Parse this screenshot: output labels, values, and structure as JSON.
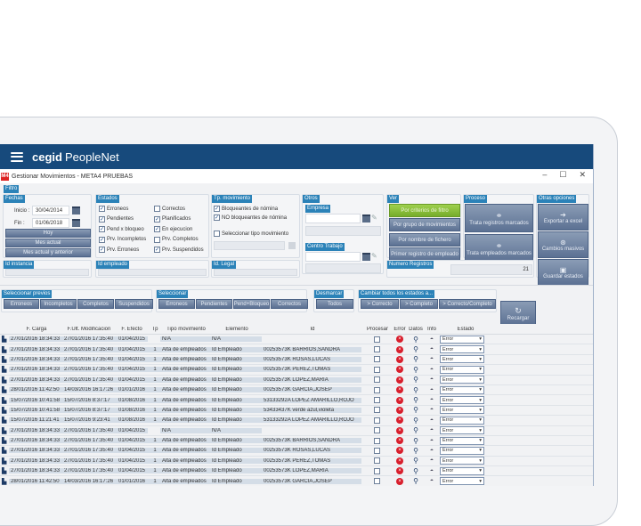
{
  "app": {
    "brand_bold": "cegid",
    "brand_name": "PeopleNet",
    "window_title": "Gestionar Movimientos - META4 PRUEBAS",
    "app_icon": "M4",
    "window_controls": {
      "minimize": "–",
      "maximize": "☐",
      "close": "✕"
    }
  },
  "filter": {
    "legend": "Filtro",
    "fechas": {
      "legend": "Fechas",
      "inicio_label": "Inicio :",
      "inicio_value": "30/04/2014",
      "fin_label": "Fin :",
      "fin_value": "01/06/2018",
      "buttons": [
        "Hoy",
        "Mes actual",
        "Mes actual y anterior"
      ]
    },
    "estados": {
      "legend": "Estados",
      "items": [
        {
          "label": "Erroneos",
          "checked": true
        },
        {
          "label": "Correctos",
          "checked": false
        },
        {
          "label": "Pendientes",
          "checked": true
        },
        {
          "label": "Planificados",
          "checked": true
        },
        {
          "label": "Pend x bloqueo",
          "checked": true
        },
        {
          "label": "En ejecucion",
          "checked": true
        },
        {
          "label": "Prv. Incompletos",
          "checked": true
        },
        {
          "label": "Prv. Completos",
          "checked": false
        },
        {
          "label": "Prv. Erroneos",
          "checked": true
        },
        {
          "label": "Prv. Suspendidos",
          "checked": true
        }
      ]
    },
    "tp_movimiento": {
      "legend": "Tp. movimiento",
      "items": [
        {
          "label": "Bloqueantes de nómina",
          "checked": true
        },
        {
          "label": "NO bloqueantes de nómina",
          "checked": true
        },
        {
          "label": "Seleccionar tipo movimiento",
          "checked": false
        }
      ]
    },
    "otros": {
      "legend": "Otros",
      "empresa_legend": "Empresa",
      "centro_legend": "Centro Trabajo"
    },
    "id_instancia_legend": "Id instancia",
    "id_empleado_legend": "Id empleado",
    "id_legal_legend": "Id. Legal"
  },
  "ver": {
    "legend": "Ver",
    "buttons": [
      "Por criterios de filtro",
      "Por grupo de movimientos",
      "Por nombre de fichero",
      "Primer registro de empleado"
    ]
  },
  "proceso": {
    "legend": "Proceso",
    "buttons": [
      "Trata registros marcados",
      "Trata empleados marcados"
    ]
  },
  "otras_opciones": {
    "legend": "Otras opciones",
    "buttons": [
      "Exportar a excel",
      "Cambios masivos",
      "Guardar estados"
    ]
  },
  "numero_registros": {
    "legend": "Numero Registros",
    "value": "21"
  },
  "toolbar": {
    "seleccionar_previos": {
      "legend": "Seleccionar previos",
      "buttons": [
        "Erroneos",
        "Incompletos",
        "Completos",
        "Suspendidos"
      ]
    },
    "seleccionar": {
      "legend": "Seleccionar",
      "buttons": [
        "Erroneos",
        "Pendientes",
        "Pend+Bloqueo",
        "Correctos"
      ]
    },
    "desmarcar": {
      "legend": "Desmarcar",
      "buttons": [
        "Todos"
      ]
    },
    "cambiar": {
      "legend": "Cambiar todos los estados a...",
      "buttons": [
        "> Correcto",
        "> Completo",
        "> Correcto/Completo"
      ]
    },
    "recargar": "Recargar"
  },
  "table": {
    "columns": [
      "",
      "F. Carga",
      "F.Ult. Modificacion",
      "F. Efecto",
      "Tp",
      "Tipo movimiento",
      "Elemento",
      "Id",
      "Procesar",
      "Error",
      "Datos",
      "Info",
      "Estado"
    ],
    "rows": [
      {
        "carga": "27/01/2016 18:34:33",
        "mod": "27/01/2016 17:35:40",
        "efecto": "01/04/2015",
        "tp": "",
        "tipo": "N/A",
        "elem": "N/A",
        "id": "",
        "estado": "Error"
      },
      {
        "carga": "27/01/2016 18:34:33",
        "mod": "27/01/2016 17:35:40",
        "efecto": "01/04/2015",
        "tp": "1",
        "tipo": "Alta de empleados",
        "elem": "Id Empleado",
        "id": "00253573K BARRIOS,SANDRA",
        "estado": "Error"
      },
      {
        "carga": "27/01/2016 18:34:33",
        "mod": "27/01/2016 17:35:40",
        "efecto": "01/04/2015",
        "tp": "1",
        "tipo": "Alta de empleados",
        "elem": "Id Empleado",
        "id": "00253573K ROSAS,LUCAS",
        "estado": "Error"
      },
      {
        "carga": "27/01/2016 18:34:33",
        "mod": "27/01/2016 17:35:40",
        "efecto": "01/04/2015",
        "tp": "1",
        "tipo": "Alta de empleados",
        "elem": "Id Empleado",
        "id": "00253573K PEREZ,TOMAS",
        "estado": "Error"
      },
      {
        "carga": "27/01/2016 18:34:33",
        "mod": "27/01/2016 17:35:40",
        "efecto": "01/04/2015",
        "tp": "1",
        "tipo": "Alta de empleados",
        "elem": "Id Empleado",
        "id": "00253573K LOPEZ,MARIA",
        "estado": "Error"
      },
      {
        "carga": "28/01/2016 11:42:50",
        "mod": "14/03/2016 16:17:26",
        "efecto": "01/01/2016",
        "tp": "1",
        "tipo": "Alta de empleados",
        "elem": "Id Empleado",
        "id": "00253573K GARCIA,JOSEP",
        "estado": "Error"
      },
      {
        "carga": "15/07/2016 10:41:58",
        "mod": "15/07/2016 8:37:17",
        "efecto": "01/08/2016",
        "tp": "1",
        "tipo": "Alta de empleados",
        "elem": "Id Empleado",
        "id": "53133292A LOPEZ AMARILLO,ROJO",
        "estado": "Error"
      },
      {
        "carga": "15/07/2016 10:41:58",
        "mod": "15/07/2016 8:37:17",
        "efecto": "01/08/2016",
        "tp": "1",
        "tipo": "Alta de empleados",
        "elem": "Id Empleado",
        "id": "53433437K verde azul,violeta",
        "estado": "Error"
      },
      {
        "carga": "15/07/2016 11:21:41",
        "mod": "15/07/2016 9:23:41",
        "efecto": "01/08/2016",
        "tp": "1",
        "tipo": "Alta de empleados",
        "elem": "Id Empleado",
        "id": "53133292A LOPEZ AMARILLO,ROJO",
        "estado": "Error"
      },
      {
        "carga": "27/01/2016 18:34:33",
        "mod": "27/01/2016 17:35:40",
        "efecto": "01/04/2015",
        "tp": "",
        "tipo": "N/A",
        "elem": "N/A",
        "id": "",
        "estado": "Error"
      },
      {
        "carga": "27/01/2016 18:34:33",
        "mod": "27/01/2016 17:35:40",
        "efecto": "01/04/2015",
        "tp": "1",
        "tipo": "Alta de empleados",
        "elem": "Id Empleado",
        "id": "00253573K BARRIOS,SANDRA",
        "estado": "Error"
      },
      {
        "carga": "27/01/2016 18:34:33",
        "mod": "27/01/2016 17:35:40",
        "efecto": "01/04/2015",
        "tp": "1",
        "tipo": "Alta de empleados",
        "elem": "Id Empleado",
        "id": "00253573K ROSAS,LUCAS",
        "estado": "Error"
      },
      {
        "carga": "27/01/2016 18:34:33",
        "mod": "27/01/2016 17:35:40",
        "efecto": "01/04/2015",
        "tp": "1",
        "tipo": "Alta de empleados",
        "elem": "Id Empleado",
        "id": "00253573K PEREZ,TOMAS",
        "estado": "Error"
      },
      {
        "carga": "27/01/2016 18:34:33",
        "mod": "27/01/2016 17:35:40",
        "efecto": "01/04/2015",
        "tp": "1",
        "tipo": "Alta de empleados",
        "elem": "Id Empleado",
        "id": "00253573K LOPEZ,MARIA",
        "estado": "Error"
      },
      {
        "carga": "28/01/2016 11:42:50",
        "mod": "14/03/2016 16:17:26",
        "efecto": "01/01/2016",
        "tp": "1",
        "tipo": "Alta de empleados",
        "elem": "Id Empleado",
        "id": "00253573K GARCIA,JOSEP",
        "estado": "Error"
      }
    ]
  },
  "colors": {
    "topbar": "#174a7c",
    "legend": "#2b82b8",
    "button": "#6a7f9f",
    "button_green": "#8cc13c",
    "error": "#d81e2c",
    "row_shade": "#d4dde7"
  }
}
